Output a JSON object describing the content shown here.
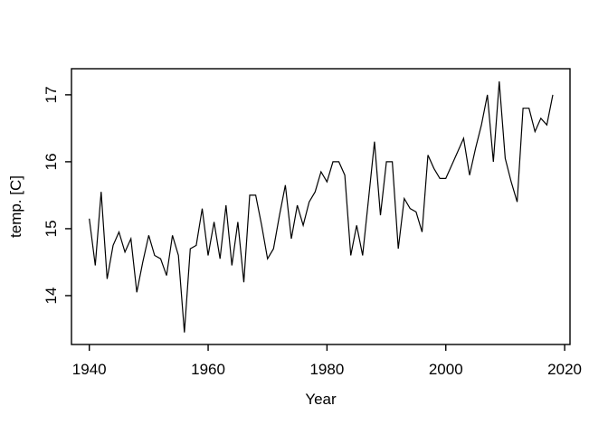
{
  "figure": {
    "background_color": "#ffffff",
    "line_color": "#000000",
    "axis_color": "#000000"
  },
  "chart_data": {
    "type": "line",
    "title": "",
    "xlabel": "Year",
    "ylabel": "temp. [C]",
    "legend": null,
    "grid": false,
    "x_ticks": [
      1940,
      1960,
      1980,
      2000,
      2020
    ],
    "y_ticks": [
      14,
      15,
      16,
      17
    ],
    "xlim": [
      1937.0,
      2020.9
    ],
    "ylim": [
      13.27,
      17.39
    ],
    "x": [
      1940,
      1941,
      1942,
      1943,
      1944,
      1945,
      1946,
      1947,
      1948,
      1949,
      1950,
      1951,
      1952,
      1953,
      1954,
      1955,
      1956,
      1957,
      1958,
      1959,
      1960,
      1961,
      1962,
      1963,
      1964,
      1965,
      1966,
      1967,
      1968,
      1969,
      1970,
      1971,
      1972,
      1973,
      1974,
      1975,
      1976,
      1977,
      1978,
      1979,
      1980,
      1981,
      1982,
      1983,
      1984,
      1985,
      1986,
      1987,
      1988,
      1989,
      1990,
      1991,
      1992,
      1993,
      1994,
      1995,
      1996,
      1997,
      1998,
      1999,
      2000,
      2001,
      2002,
      2003,
      2004,
      2005,
      2006,
      2007,
      2008,
      2009,
      2010,
      2011,
      2012,
      2013,
      2014,
      2015,
      2016,
      2017,
      2018
    ],
    "values": [
      15.15,
      14.45,
      15.55,
      14.25,
      14.75,
      14.95,
      14.65,
      14.85,
      14.05,
      14.5,
      14.9,
      14.6,
      14.55,
      14.3,
      14.9,
      14.6,
      13.45,
      14.7,
      14.75,
      15.3,
      14.6,
      15.1,
      14.55,
      15.35,
      14.45,
      15.1,
      14.2,
      15.5,
      15.5,
      15.05,
      14.55,
      14.7,
      15.2,
      15.65,
      14.85,
      15.35,
      15.05,
      15.4,
      15.55,
      15.85,
      15.7,
      16.0,
      16.0,
      15.8,
      14.6,
      15.05,
      14.6,
      15.45,
      16.3,
      15.2,
      16.0,
      16.0,
      14.7,
      15.45,
      15.3,
      15.25,
      14.95,
      16.1,
      15.9,
      15.75,
      15.75,
      15.95,
      16.15,
      16.35,
      15.8,
      16.2,
      16.55,
      17.0,
      16.0,
      17.2,
      16.05,
      15.7,
      15.4,
      16.8,
      16.8,
      16.45,
      16.65,
      16.55,
      17.0
    ]
  }
}
